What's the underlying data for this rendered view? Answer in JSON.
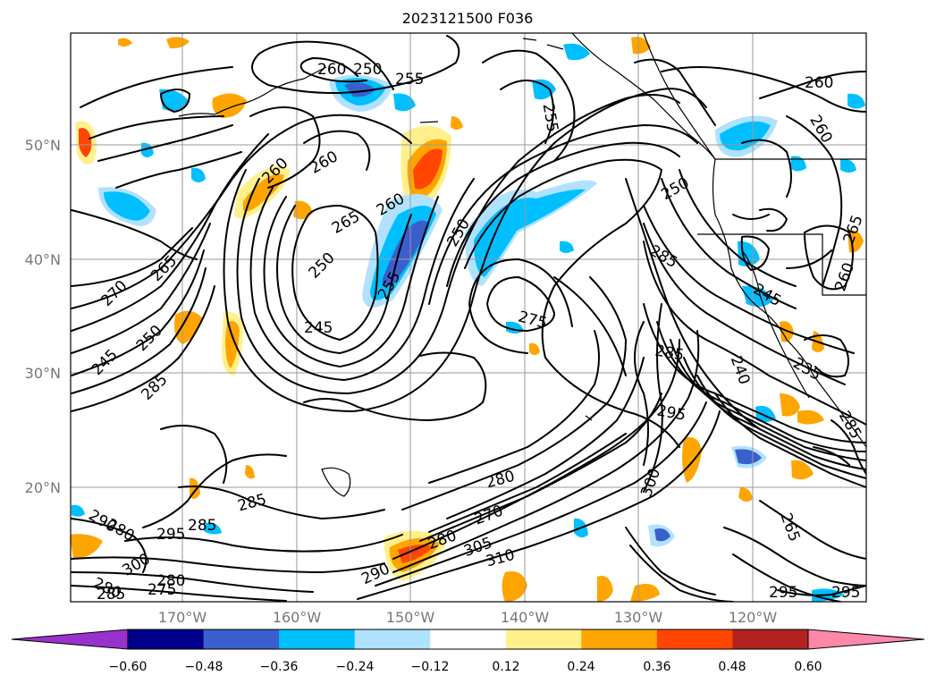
{
  "title": "2023121500 F036",
  "lat_labels": [
    "50°N",
    "40°N",
    "30°N",
    "20°N"
  ],
  "lon_labels": [
    "170°W",
    "160°W",
    "150°W",
    "140°W",
    "130°W",
    "120°W"
  ],
  "colorbar": {
    "ticks": [
      "−0.60",
      "−0.48",
      "−0.36",
      "−0.24",
      "−0.12",
      "0.12",
      "0.24",
      "0.36",
      "0.48",
      "0.60"
    ],
    "colors": [
      "#9932cc",
      "#00008b",
      "#3a5fcd",
      "#00bfff",
      "#b0e2ff",
      "#ffffff",
      "#fff08c",
      "#ffa500",
      "#ff4500",
      "#b22222",
      "#ff88aa"
    ]
  },
  "contour_labels": [
    {
      "text": "250",
      "id": "a"
    },
    {
      "text": "255",
      "id": "b"
    },
    {
      "text": "260",
      "id": "c"
    },
    {
      "text": "265",
      "id": "d"
    },
    {
      "text": "270",
      "id": "e"
    },
    {
      "text": "245",
      "id": "f"
    },
    {
      "text": "250",
      "id": "g"
    },
    {
      "text": "285",
      "id": "h"
    },
    {
      "text": "260",
      "id": "i"
    },
    {
      "text": "260",
      "id": "j"
    },
    {
      "text": "265",
      "id": "k"
    },
    {
      "text": "250",
      "id": "l"
    },
    {
      "text": "245",
      "id": "m"
    },
    {
      "text": "260",
      "id": "n"
    },
    {
      "text": "250",
      "id": "o"
    },
    {
      "text": "255",
      "id": "p"
    },
    {
      "text": "255",
      "id": "q"
    },
    {
      "text": "275",
      "id": "r"
    },
    {
      "text": "285",
      "id": "s"
    },
    {
      "text": "295",
      "id": "t"
    },
    {
      "text": "240",
      "id": "u"
    },
    {
      "text": "285",
      "id": "v"
    },
    {
      "text": "245",
      "id": "w"
    },
    {
      "text": "235",
      "id": "x"
    },
    {
      "text": "260",
      "id": "y"
    },
    {
      "text": "260",
      "id": "z"
    },
    {
      "text": "260",
      "id": "aa"
    },
    {
      "text": "250",
      "id": "ab"
    },
    {
      "text": "280",
      "id": "ac"
    },
    {
      "text": "270",
      "id": "ad"
    },
    {
      "text": "280",
      "id": "ae"
    },
    {
      "text": "305",
      "id": "af"
    },
    {
      "text": "310",
      "id": "ag"
    },
    {
      "text": "290",
      "id": "ah"
    },
    {
      "text": "300",
      "id": "ai"
    },
    {
      "text": "285",
      "id": "aj"
    },
    {
      "text": "285",
      "id": "ak"
    },
    {
      "text": "290",
      "id": "al"
    },
    {
      "text": "295",
      "id": "am"
    },
    {
      "text": "280",
      "id": "an"
    },
    {
      "text": "300",
      "id": "ao"
    },
    {
      "text": "280",
      "id": "ap"
    },
    {
      "text": "285",
      "id": "aq"
    },
    {
      "text": "275",
      "id": "ar"
    },
    {
      "text": "280",
      "id": "as"
    },
    {
      "text": "265",
      "id": "at"
    },
    {
      "text": "295",
      "id": "au"
    },
    {
      "text": "295",
      "id": "av"
    },
    {
      "text": "265",
      "id": "aw"
    },
    {
      "text": "285",
      "id": "ax"
    }
  ]
}
